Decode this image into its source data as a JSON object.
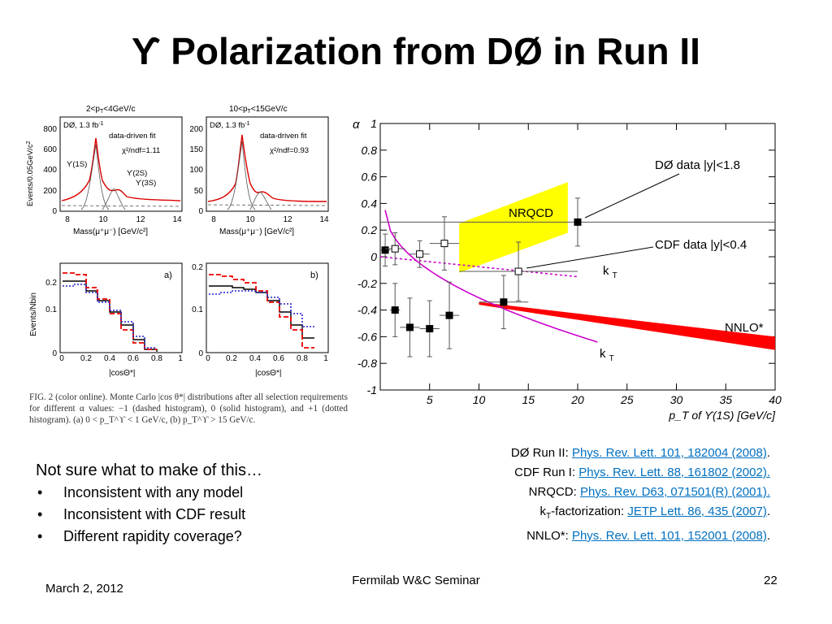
{
  "slide": {
    "title": "ϒ Polarization from DØ in Run II",
    "footer_date": "March 2, 2012",
    "footer_center": "Fermilab W&C Seminar",
    "page_number": "22"
  },
  "mass_plots": [
    {
      "header": "2<p",
      "header_sub": "T",
      "header_tail": "<4GeV/c",
      "ylabel": "Events/0.05GeV/c",
      "ylabel_sup": "2",
      "xlabel": "Mass(μ⁺μ⁻) [GeV/c²]",
      "lumi": "DØ, 1.3 fb",
      "lumi_sup": "-1",
      "fit_label": "data-driven fit",
      "chi2": "χ²/ndf=1.11",
      "yticks": [
        "0",
        "200",
        "400",
        "600",
        "800"
      ],
      "xticks": [
        "8",
        "10",
        "12",
        "14"
      ],
      "peaks": [
        "ϒ(1S)",
        "ϒ(2S)",
        "ϒ(3S)"
      ]
    },
    {
      "header": "10<p",
      "header_sub": "T",
      "header_tail": "<15GeV/c",
      "xlabel": "Mass(μ⁺μ⁻) [GeV/c²]",
      "lumi": "DØ, 1.3 fb",
      "lumi_sup": "-1",
      "fit_label": "data-driven fit",
      "chi2": "χ²/ndf=0.93",
      "yticks": [
        "0",
        "50",
        "100",
        "150",
        "200"
      ],
      "xticks": [
        "8",
        "10",
        "12",
        "14"
      ]
    }
  ],
  "cos_plots": [
    {
      "panel": "a)",
      "ylabel": "Events/Nbin",
      "xlabel": "|cosΘ*|",
      "yticks": [
        "0",
        "0.1",
        "0.2"
      ],
      "xticks": [
        "0",
        "0.2",
        "0.4",
        "0.6",
        "0.8",
        "1"
      ]
    },
    {
      "panel": "b)",
      "xlabel": "|cosΘ*|",
      "yticks": [
        "0",
        "0.1",
        "0.2"
      ],
      "xticks": [
        "0",
        "0.2",
        "0.4",
        "0.6",
        "0.8",
        "1"
      ]
    }
  ],
  "caption": "FIG. 2 (color online). Monte Carlo |cos θ*| distributions after all selection requirements for different α values: −1 (dashed histogram), 0 (solid histogram), and +1 (dotted histogram). (a) 0 < p_T^ϒ < 1 GeV/c, (b) p_T^ϒ > 15 GeV/c.",
  "chart_data": {
    "type": "scatter",
    "ylabel": "α",
    "xlabel": "p_T of ϒ(1S) [GeV/c]",
    "xlim": [
      0,
      40
    ],
    "ylim": [
      -1,
      1
    ],
    "xticks": [
      "5",
      "10",
      "15",
      "20",
      "25",
      "30",
      "35",
      "40"
    ],
    "yticks": [
      "1",
      "0.8",
      "0.6",
      "0.4",
      "0.2",
      "0",
      "-0.2",
      "-0.4",
      "-0.6",
      "-0.8",
      "-1"
    ],
    "series": [
      {
        "name": "DØ data |y|<1.8",
        "marker": "filled-square",
        "points": [
          {
            "x": 0.5,
            "y": 0.05,
            "xerr": 0.5,
            "yerr": 0.12
          },
          {
            "x": 1.5,
            "y": -0.4,
            "xerr": 0.5,
            "yerr": 0.2
          },
          {
            "x": 3.0,
            "y": -0.53,
            "xerr": 1.0,
            "yerr": 0.22
          },
          {
            "x": 5.0,
            "y": -0.54,
            "xerr": 1.0,
            "yerr": 0.21
          },
          {
            "x": 7.0,
            "y": -0.44,
            "xerr": 1.0,
            "yerr": 0.25
          },
          {
            "x": 12.5,
            "y": -0.34,
            "xerr": 2.5,
            "yerr": 0.2
          },
          {
            "x": 20.0,
            "y": 0.26,
            "xerr": 20.0,
            "yerr": 0.18
          }
        ]
      },
      {
        "name": "CDF data |y|<0.4",
        "marker": "open-square",
        "points": [
          {
            "x": 1.5,
            "y": 0.06,
            "xerr": 1.0,
            "yerr": 0.12
          },
          {
            "x": 4.0,
            "y": 0.02,
            "xerr": 1.0,
            "yerr": 0.1
          },
          {
            "x": 6.5,
            "y": 0.1,
            "xerr": 1.5,
            "yerr": 0.2
          },
          {
            "x": 14.0,
            "y": -0.11,
            "xerr": 6.0,
            "yerr": 0.22
          }
        ]
      }
    ],
    "bands": [
      {
        "name": "NRQCD",
        "color": "#ffff00",
        "x": [
          8,
          19
        ],
        "y_low": [
          -0.12,
          0.18
        ],
        "y_high": [
          0.25,
          0.56
        ]
      },
      {
        "name": "NNLO*",
        "color": "#ff0000",
        "x": [
          10,
          40
        ],
        "y_low": [
          -0.36,
          -0.7
        ],
        "y_high": [
          -0.34,
          -0.6
        ]
      }
    ],
    "curves": [
      {
        "name": "k_T",
        "style": "dotted",
        "color": "#cc00cc",
        "x": [
          0,
          20
        ],
        "y": [
          0.0,
          -0.15
        ]
      },
      {
        "name": "k_T",
        "style": "solid",
        "color": "#cc00cc",
        "x": [
          0.5,
          22
        ],
        "y": [
          0.35,
          -0.64
        ]
      }
    ],
    "annotations": [
      "DØ data |y|<1.8",
      "NRQCD",
      "CDF data |y|<0.4",
      "k",
      "NNLO*",
      "k"
    ]
  },
  "notes": {
    "heading": "Not sure what to make of this…",
    "bullets": [
      "Inconsistent with any model",
      "Inconsistent with CDF result",
      "Different rapidity coverage?"
    ]
  },
  "references": [
    {
      "label": "DØ Run II: ",
      "link": "Phys. Rev. Lett. 101, 182004 (2008)",
      "tail": "."
    },
    {
      "label": "CDF Run I:  ",
      "link": "Phys. Rev. Lett. 88, 161802 (2002).",
      "tail": ""
    },
    {
      "label": "NRQCD:  ",
      "link": "Phys. Rev. D63, 071501(R) (2001).",
      "tail": ""
    },
    {
      "label_a": "k",
      "label_sub": "T",
      "label_b": "-factorization:  ",
      "link": "JETP Lett. 86, 435 (2007)",
      "tail": "."
    },
    {
      "label": "NNLO*: ",
      "link": "Phys. Rev. Lett. 101, 152001 (2008)",
      "tail": "."
    }
  ]
}
